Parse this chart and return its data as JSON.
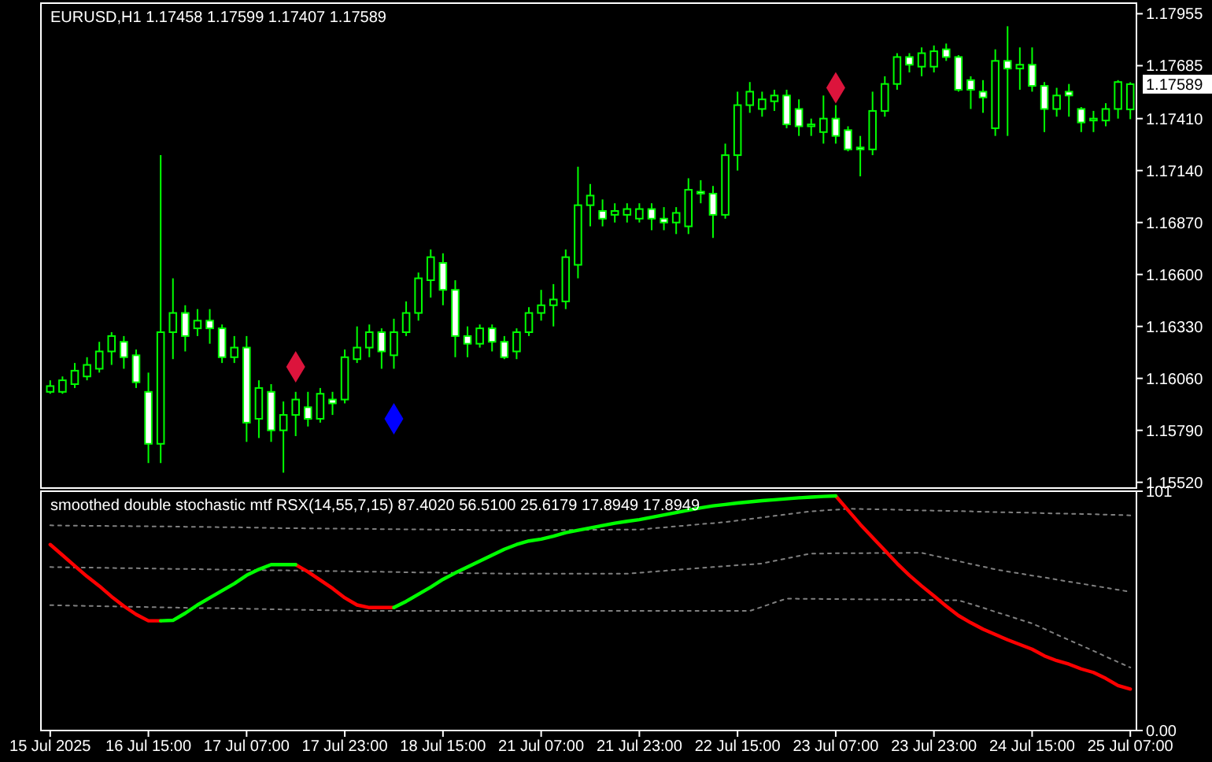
{
  "chart_data": [
    {
      "type": "candlestick",
      "title": "EURUSD,H1  1.17458 1.17599 1.17407 1.17589",
      "color": "#00ff00",
      "tick_labels": "y",
      "ylim": [
        1.1549,
        1.1801
      ],
      "yticks": [
        1.17955,
        1.17685,
        {
          "value": 1.1741,
          "label": "1.17410"
        },
        {
          "value": 1.1714,
          "label": "1.17140"
        },
        {
          "value": 1.1687,
          "label": "1.16870"
        },
        {
          "value": 1.166,
          "label": "1.16600"
        },
        {
          "value": 1.1633,
          "label": "1.16330"
        },
        {
          "value": 1.1606,
          "label": "1.16060"
        },
        {
          "value": 1.1579,
          "label": "1.15790"
        },
        {
          "value": 1.1552,
          "label": "1.15520"
        }
      ],
      "annotations": [
        "1.17589"
      ],
      "ohlc": [
        [
          1.1599,
          1.1605,
          1.1598,
          1.1602
        ],
        [
          1.1599,
          1.1607,
          1.1598,
          1.1605
        ],
        [
          1.1603,
          1.1614,
          1.1601,
          1.161
        ],
        [
          1.1607,
          1.1617,
          1.1605,
          1.1613
        ],
        [
          1.1611,
          1.1625,
          1.1609,
          1.162
        ],
        [
          1.162,
          1.163,
          1.1613,
          1.1628
        ],
        [
          1.1625,
          1.1628,
          1.1611,
          1.1617
        ],
        [
          1.1618,
          1.1621,
          1.1601,
          1.1604
        ],
        [
          1.1599,
          1.1609,
          1.1562,
          1.1572
        ],
        [
          1.1572,
          1.1722,
          1.1562,
          1.163
        ],
        [
          1.163,
          1.1658,
          1.1616,
          1.164
        ],
        [
          1.164,
          1.1644,
          1.162,
          1.1628
        ],
        [
          1.1632,
          1.1642,
          1.1628,
          1.1636
        ],
        [
          1.1636,
          1.1642,
          1.1624,
          1.1632
        ],
        [
          1.1632,
          1.1634,
          1.1614,
          1.1617
        ],
        [
          1.1617,
          1.1628,
          1.1614,
          1.1622
        ],
        [
          1.1622,
          1.1628,
          1.1573,
          1.1583
        ],
        [
          1.1585,
          1.1605,
          1.1575,
          1.1601
        ],
        [
          1.1599,
          1.1603,
          1.1573,
          1.1579
        ],
        [
          1.1579,
          1.1594,
          1.1557,
          1.1587
        ],
        [
          1.1587,
          1.1599,
          1.1576,
          1.1595
        ],
        [
          1.1591,
          1.1599,
          1.1581,
          1.1585
        ],
        [
          1.1585,
          1.1601,
          1.1583,
          1.1598
        ],
        [
          1.1595,
          1.1599,
          1.1587,
          1.1593
        ],
        [
          1.1595,
          1.1621,
          1.1593,
          1.1617
        ],
        [
          1.1616,
          1.1633,
          1.1614,
          1.1622
        ],
        [
          1.1622,
          1.1634,
          1.1617,
          1.163
        ],
        [
          1.163,
          1.1632,
          1.1611,
          1.162
        ],
        [
          1.1618,
          1.1637,
          1.1611,
          1.163
        ],
        [
          1.163,
          1.1646,
          1.1628,
          1.164
        ],
        [
          1.164,
          1.1661,
          1.1636,
          1.1658
        ],
        [
          1.1657,
          1.1673,
          1.1648,
          1.1669
        ],
        [
          1.1666,
          1.1671,
          1.1644,
          1.1652
        ],
        [
          1.1652,
          1.1657,
          1.1617,
          1.1628
        ],
        [
          1.1628,
          1.1633,
          1.1617,
          1.1624
        ],
        [
          1.1624,
          1.1634,
          1.1622,
          1.1632
        ],
        [
          1.1632,
          1.1634,
          1.162,
          1.1625
        ],
        [
          1.1625,
          1.1628,
          1.1616,
          1.1617
        ],
        [
          1.162,
          1.1632,
          1.1616,
          1.163
        ],
        [
          1.163,
          1.1643,
          1.1628,
          1.164
        ],
        [
          1.164,
          1.1652,
          1.1636,
          1.1644
        ],
        [
          1.1644,
          1.1655,
          1.1633,
          1.1647
        ],
        [
          1.1646,
          1.1673,
          1.1642,
          1.1669
        ],
        [
          1.1665,
          1.1716,
          1.1658,
          1.1696
        ],
        [
          1.1696,
          1.1707,
          1.1685,
          1.1701
        ],
        [
          1.1693,
          1.1699,
          1.1685,
          1.1689
        ],
        [
          1.1691,
          1.1697,
          1.1687,
          1.1693
        ],
        [
          1.1691,
          1.1697,
          1.1687,
          1.1694
        ],
        [
          1.1689,
          1.1697,
          1.1687,
          1.1694
        ],
        [
          1.1694,
          1.1697,
          1.1683,
          1.1689
        ],
        [
          1.1689,
          1.1695,
          1.1683,
          1.1687
        ],
        [
          1.1687,
          1.1695,
          1.1681,
          1.1692
        ],
        [
          1.1685,
          1.171,
          1.1681,
          1.1704
        ],
        [
          1.1703,
          1.1709,
          1.1697,
          1.1702
        ],
        [
          1.1702,
          1.1706,
          1.1679,
          1.1691
        ],
        [
          1.1691,
          1.1728,
          1.1689,
          1.1722
        ],
        [
          1.1722,
          1.1755,
          1.1714,
          1.1748
        ],
        [
          1.1748,
          1.176,
          1.1744,
          1.1755
        ],
        [
          1.1746,
          1.1755,
          1.1742,
          1.1751
        ],
        [
          1.175,
          1.1756,
          1.1745,
          1.1753
        ],
        [
          1.1753,
          1.1756,
          1.1736,
          1.1738
        ],
        [
          1.1746,
          1.1751,
          1.1732,
          1.1737
        ],
        [
          1.1737,
          1.1741,
          1.1732,
          1.1738
        ],
        [
          1.1734,
          1.1753,
          1.1728,
          1.1741
        ],
        [
          1.1741,
          1.1748,
          1.1728,
          1.1732
        ],
        [
          1.1735,
          1.1737,
          1.1724,
          1.1725
        ],
        [
          1.1726,
          1.1732,
          1.1711,
          1.1725
        ],
        [
          1.1725,
          1.1755,
          1.1722,
          1.1745
        ],
        [
          1.1745,
          1.1763,
          1.1742,
          1.1759
        ],
        [
          1.1759,
          1.1775,
          1.1756,
          1.1773
        ],
        [
          1.1773,
          1.1775,
          1.1765,
          1.1769
        ],
        [
          1.1768,
          1.1778,
          1.1763,
          1.1775
        ],
        [
          1.1768,
          1.1779,
          1.1765,
          1.1776
        ],
        [
          1.1777,
          1.178,
          1.1771,
          1.1773
        ],
        [
          1.1773,
          1.1774,
          1.1755,
          1.1756
        ],
        [
          1.1761,
          1.1763,
          1.1746,
          1.1756
        ],
        [
          1.1755,
          1.1761,
          1.1744,
          1.1752
        ],
        [
          1.1736,
          1.1777,
          1.1732,
          1.1771
        ],
        [
          1.1771,
          1.1789,
          1.1732,
          1.1767
        ],
        [
          1.1767,
          1.1778,
          1.1756,
          1.1769
        ],
        [
          1.1769,
          1.1778,
          1.1755,
          1.1758
        ],
        [
          1.1758,
          1.176,
          1.1734,
          1.1746
        ],
        [
          1.1746,
          1.1757,
          1.1742,
          1.1753
        ],
        [
          1.1755,
          1.1759,
          1.1742,
          1.1753
        ],
        [
          1.1746,
          1.1747,
          1.1734,
          1.1739
        ],
        [
          1.174,
          1.1745,
          1.1734,
          1.1741
        ],
        [
          1.174,
          1.1749,
          1.1737,
          1.1746
        ],
        [
          1.1746,
          1.1761,
          1.1741,
          1.176
        ],
        [
          1.17458,
          1.17599,
          1.17407,
          1.17589
        ]
      ],
      "series": [
        {
          "type": "scatter",
          "marker": "diamond",
          "color": "#dc143c",
          "values": [
            null,
            null,
            null,
            null,
            null,
            null,
            null,
            null,
            null,
            null,
            null,
            null,
            null,
            null,
            null,
            null,
            null,
            null,
            null,
            null,
            1.1612,
            null,
            null,
            null,
            null,
            null,
            null,
            null,
            null,
            null,
            null,
            null,
            null,
            null,
            null,
            null,
            null,
            null,
            null,
            null,
            null,
            null,
            null,
            null,
            null,
            null,
            null,
            null,
            null,
            null,
            null,
            null,
            null,
            null,
            null,
            null,
            null,
            null,
            null,
            null,
            null,
            null,
            null,
            null,
            1.1757,
            null,
            null,
            null,
            null,
            null,
            null,
            null,
            null,
            null,
            null,
            null,
            null,
            null,
            null,
            null,
            null,
            null,
            null,
            null,
            null,
            null,
            null,
            null,
            null
          ]
        },
        {
          "type": "scatter",
          "marker": "diamond",
          "color": "#0000ff",
          "values": [
            null,
            null,
            null,
            null,
            null,
            null,
            null,
            null,
            null,
            null,
            null,
            null,
            null,
            null,
            null,
            null,
            null,
            null,
            null,
            null,
            null,
            null,
            null,
            null,
            null,
            null,
            null,
            null,
            1.1585,
            null,
            null,
            null,
            null,
            null,
            null,
            null,
            null,
            null,
            null,
            null,
            null,
            null,
            null,
            null,
            null,
            null,
            null,
            null,
            null,
            null,
            null,
            null,
            null,
            null,
            null,
            null,
            null,
            null,
            null,
            null,
            null,
            null,
            null,
            null,
            null,
            null,
            null,
            null,
            null,
            null,
            null,
            null,
            null,
            null,
            null,
            null,
            null,
            null,
            null,
            null,
            null,
            null,
            null,
            null,
            null,
            null,
            null,
            null,
            null
          ]
        }
      ]
    },
    {
      "type": "line",
      "title": "smoothed double stochastic mtf RSX(14,55,7,15) 87.4020 56.5100 25.6179 17.8949 17.8949",
      "categories": [
        "15 Jul 2025",
        null,
        null,
        null,
        null,
        null,
        null,
        null,
        "16 Jul 15:00",
        null,
        null,
        null,
        null,
        null,
        null,
        null,
        "17 Jul 07:00",
        null,
        null,
        null,
        null,
        null,
        null,
        null,
        "17 Jul 23:00",
        null,
        null,
        null,
        null,
        null,
        null,
        null,
        "18 Jul 15:00",
        null,
        null,
        null,
        null,
        null,
        null,
        null,
        "21 Jul 07:00",
        null,
        null,
        null,
        null,
        null,
        null,
        null,
        "21 Jul 23:00",
        null,
        null,
        null,
        null,
        null,
        null,
        null,
        "22 Jul 15:00",
        null,
        null,
        null,
        null,
        null,
        null,
        null,
        "23 Jul 07:00",
        null,
        null,
        null,
        null,
        null,
        null,
        null,
        "23 Jul 23:00",
        null,
        null,
        null,
        null,
        null,
        null,
        null,
        "24 Jul 15:00",
        null,
        null,
        null,
        null,
        null,
        null,
        null,
        "25 Jul 07:00"
      ],
      "ylim": [
        0,
        101
      ],
      "yticks": [
        {
          "value": 0,
          "label": "0.00"
        },
        101
      ],
      "series": [
        {
          "color": "#808080",
          "line_style": "dotted",
          "values": [
            86.6,
            86.5,
            86.5,
            86.4,
            86.4,
            86.3,
            86.3,
            86.2,
            86.2,
            86.1,
            86.1,
            86.0,
            86.0,
            85.9,
            85.8,
            85.8,
            85.7,
            85.6,
            85.5,
            85.4,
            85.4,
            85.3,
            85.3,
            85.2,
            85.2,
            85.1,
            85.1,
            85.0,
            85.0,
            84.9,
            84.9,
            84.8,
            84.8,
            84.7,
            84.7,
            84.6,
            84.5,
            84.5,
            84.5,
            84.5,
            84.6,
            84.6,
            84.6,
            84.7,
            84.7,
            84.7,
            84.8,
            84.8,
            84.8,
            85.3,
            85.7,
            86.2,
            86.6,
            87.1,
            87.5,
            88.0,
            88.6,
            89.3,
            89.9,
            90.6,
            91.2,
            91.9,
            92.5,
            92.9,
            93.2,
            93.6,
            93.5,
            93.4,
            93.3,
            93.2,
            93.0,
            92.9,
            92.8,
            92.7,
            92.6,
            92.5,
            92.3,
            92.2,
            92.1,
            92.0,
            91.9,
            91.7,
            91.6,
            91.5,
            91.4,
            91.3,
            91.1,
            91.0,
            90.8
          ]
        },
        {
          "color": "#808080",
          "line_style": "dotted",
          "values": [
            69.0,
            68.9,
            68.8,
            68.8,
            68.7,
            68.6,
            68.5,
            68.5,
            68.4,
            68.3,
            68.2,
            68.2,
            68.1,
            68.0,
            67.9,
            67.9,
            67.8,
            67.7,
            67.6,
            67.6,
            67.5,
            67.4,
            67.3,
            67.3,
            67.2,
            67.1,
            67.0,
            67.0,
            66.9,
            66.8,
            66.7,
            66.7,
            66.6,
            66.5,
            66.4,
            66.4,
            66.3,
            66.2,
            66.2,
            66.2,
            66.2,
            66.2,
            66.2,
            66.2,
            66.2,
            66.2,
            66.2,
            66.2,
            66.6,
            67.0,
            67.4,
            67.8,
            68.2,
            68.6,
            69.0,
            69.4,
            69.8,
            70.1,
            70.5,
            71.6,
            72.6,
            73.7,
            74.7,
            74.7,
            74.8,
            74.8,
            74.8,
            74.9,
            74.9,
            74.9,
            75.0,
            75.0,
            73.8,
            72.7,
            71.5,
            70.3,
            69.2,
            68.0,
            67.1,
            66.3,
            65.4,
            64.6,
            63.7,
            62.8,
            62.0,
            61.1,
            60.3,
            59.4,
            58.5
          ]
        },
        {
          "color": "#808080",
          "line_style": "dotted",
          "values": [
            52.9,
            52.8,
            52.7,
            52.6,
            52.5,
            52.4,
            52.3,
            52.2,
            52.1,
            52.0,
            51.9,
            51.8,
            51.7,
            51.7,
            51.6,
            51.5,
            51.4,
            51.3,
            51.2,
            51.1,
            51.0,
            50.9,
            50.8,
            50.7,
            50.6,
            50.5,
            50.5,
            50.5,
            50.5,
            50.5,
            50.5,
            50.5,
            50.5,
            50.5,
            50.5,
            50.5,
            50.5,
            50.5,
            50.5,
            50.5,
            50.5,
            50.5,
            50.5,
            50.5,
            50.5,
            50.5,
            50.5,
            50.5,
            50.5,
            50.5,
            50.5,
            50.5,
            50.5,
            50.5,
            50.5,
            50.5,
            50.5,
            50.5,
            52.2,
            54.0,
            55.7,
            55.6,
            55.6,
            55.5,
            55.5,
            55.4,
            55.4,
            55.3,
            55.3,
            55.2,
            55.2,
            55.1,
            55.1,
            55.0,
            55.0,
            53.4,
            51.8,
            50.1,
            48.5,
            46.8,
            45.2,
            42.9,
            40.5,
            38.2,
            35.9,
            33.6,
            31.2,
            28.9,
            26.6
          ]
        },
        {
          "color": "#ff0000",
          "line_style": "solid",
          "values": [
            78.5,
            74,
            69.5,
            65,
            61,
            56.5,
            52.5,
            49,
            46.3,
            46.3,
            null,
            null,
            null,
            null,
            null,
            null,
            null,
            null,
            null,
            null,
            70,
            67,
            63.5,
            60,
            56,
            53,
            51.9,
            51.9,
            51.9,
            null,
            null,
            null,
            null,
            null,
            null,
            null,
            null,
            null,
            null,
            null,
            null,
            null,
            null,
            null,
            null,
            null,
            null,
            null,
            null,
            null,
            null,
            null,
            null,
            null,
            null,
            null,
            null,
            null,
            null,
            null,
            null,
            null,
            null,
            null,
            99,
            93,
            87,
            81.5,
            76,
            70.5,
            65.5,
            61,
            56.8,
            52.5,
            48.5,
            45.5,
            42.8,
            40.5,
            38.3,
            36.3,
            34.3,
            31.5,
            29.5,
            28,
            26,
            24.5,
            22,
            19,
            17.5
          ]
        },
        {
          "color": "#00ff00",
          "line_style": "solid",
          "values": [
            null,
            null,
            null,
            null,
            null,
            null,
            null,
            null,
            null,
            46.3,
            46.5,
            49.5,
            53,
            56,
            59,
            62,
            65.5,
            68,
            70,
            70,
            70,
            null,
            null,
            null,
            null,
            null,
            null,
            null,
            51.9,
            54.5,
            57.5,
            60.5,
            63.8,
            66.5,
            69,
            71.5,
            74,
            76.5,
            78.5,
            80,
            80.8,
            82,
            83.5,
            84.5,
            85.5,
            86.5,
            87.5,
            88.3,
            89,
            90,
            91,
            92,
            93,
            94,
            94.8,
            95.4,
            96,
            96.5,
            97,
            97.4,
            97.8,
            98.2,
            98.5,
            98.8,
            99,
            null,
            null,
            null,
            null,
            null,
            null,
            null,
            null,
            null,
            null,
            null,
            null,
            null,
            null,
            null,
            null,
            null,
            null,
            null,
            null,
            null,
            null,
            null,
            null
          ]
        }
      ]
    }
  ]
}
